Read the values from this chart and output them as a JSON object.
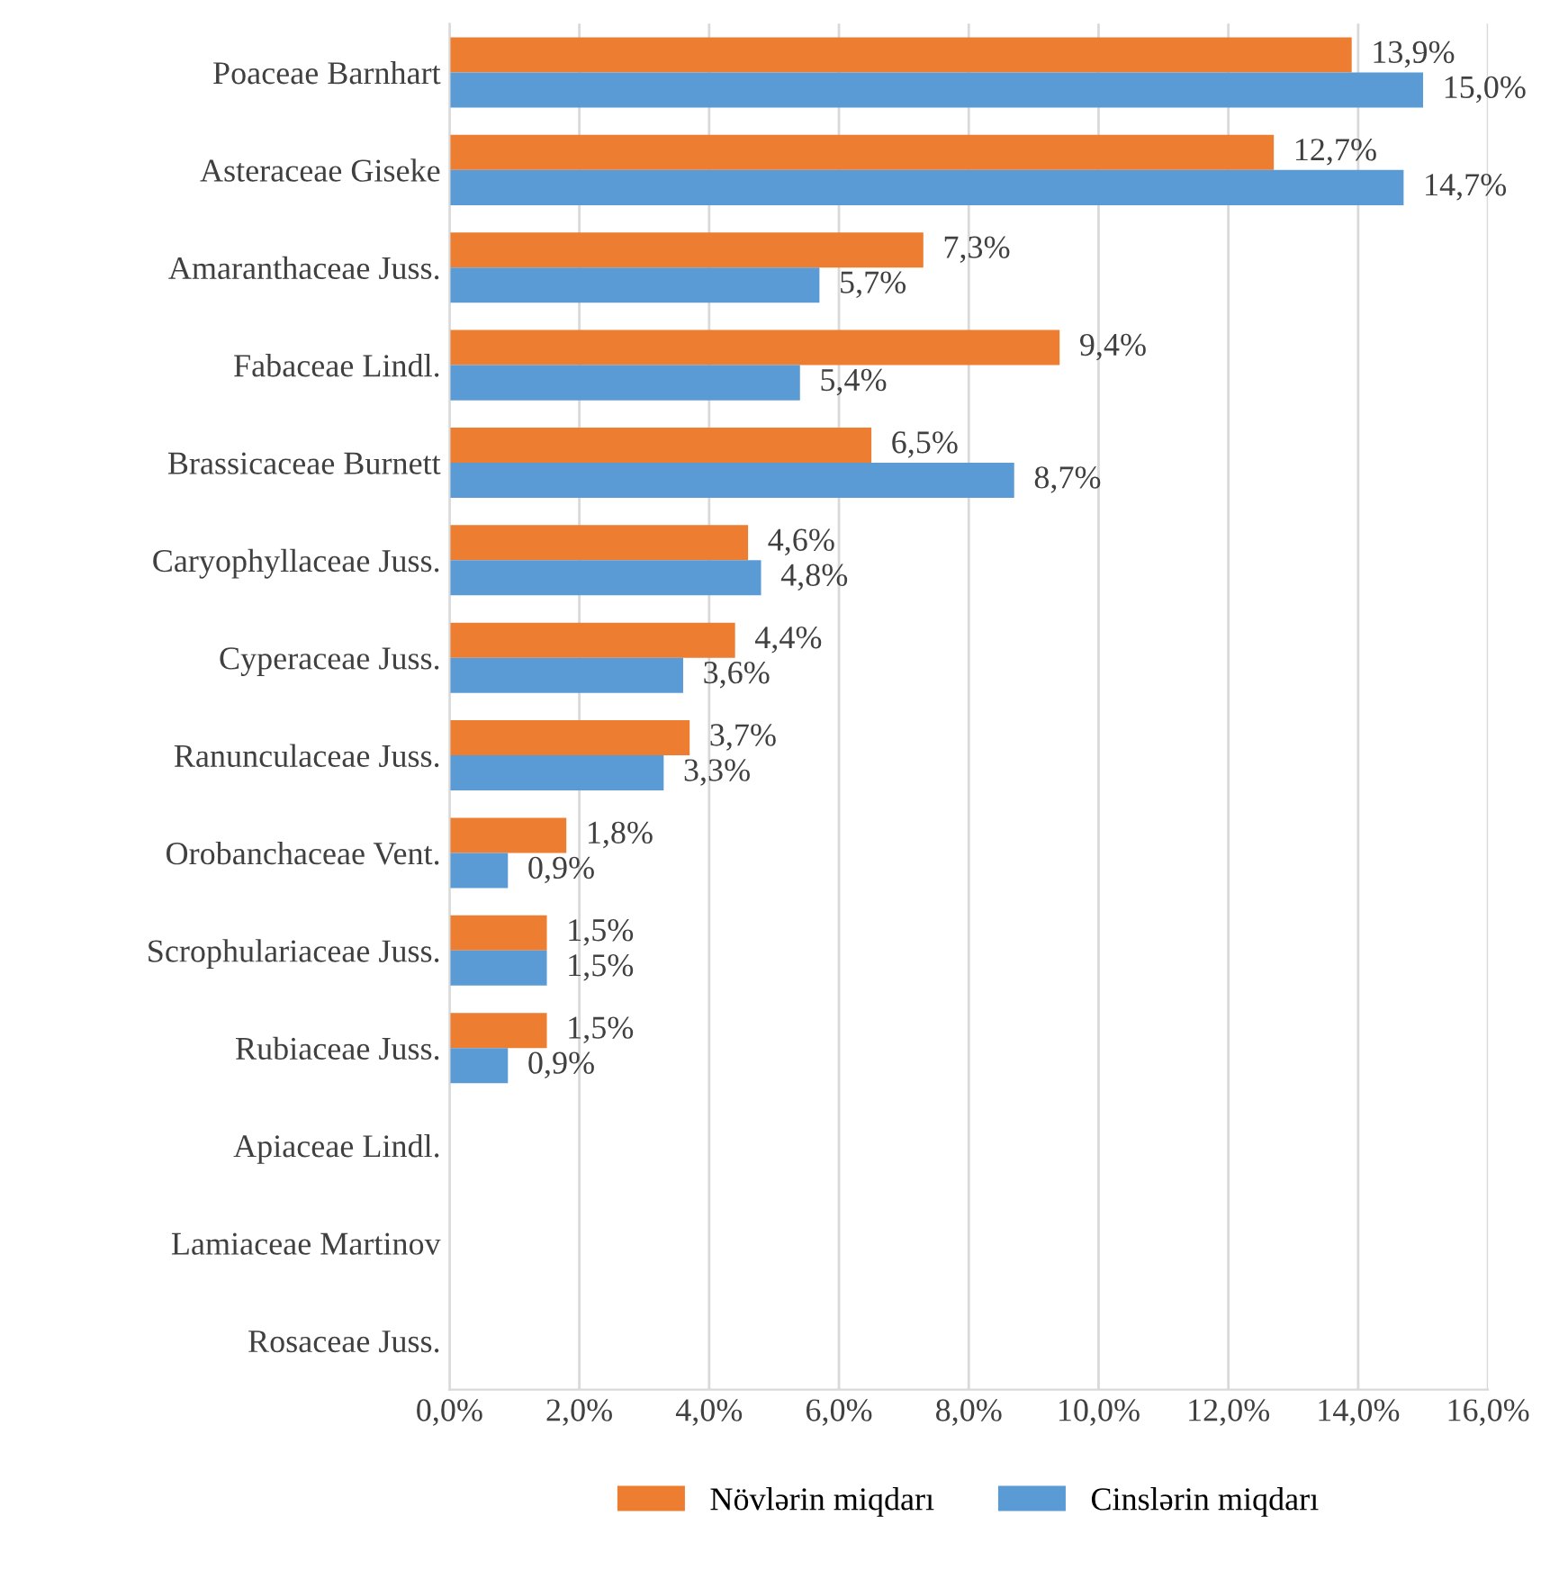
{
  "chart_data": {
    "type": "bar",
    "orientation": "horizontal",
    "categories": [
      "Poaceae Barnhart",
      "Asteraceae Giseke",
      "Amaranthaceae Juss.",
      "Fabaceae Lindl.",
      "Brassicaceae Burnett",
      "Caryophyllaceae Juss.",
      "Cyperaceae Juss.",
      "Ranunculaceae Juss.",
      "Orobanchaceae Vent.",
      "Scrophulariaceae Juss.",
      "Rubiaceae Juss.",
      "Apiaceae Lindl.",
      "Lamiaceae Martinov",
      "Rosaceae Juss."
    ],
    "series": [
      {
        "name": "Növlərin miqdarı",
        "color": "#ed7d31",
        "values": [
          13.9,
          12.7,
          7.3,
          9.4,
          6.5,
          4.6,
          4.4,
          3.7,
          1.8,
          1.5,
          1.5,
          null,
          null,
          null
        ],
        "value_labels": [
          "13,9%",
          "12,7%",
          "7,3%",
          "9,4%",
          "6,5%",
          "4,6%",
          "4,4%",
          "3,7%",
          "1,8%",
          "1,5%",
          "1,5%",
          null,
          null,
          null
        ]
      },
      {
        "name": "Cinslərin miqdarı",
        "color": "#5b9bd5",
        "values": [
          15.0,
          14.7,
          5.7,
          5.4,
          8.7,
          4.8,
          3.6,
          3.3,
          0.9,
          1.5,
          0.9,
          null,
          null,
          null
        ],
        "value_labels": [
          "15,0%",
          "14,7%",
          "5,7%",
          "5,4%",
          "8,7%",
          "4,8%",
          "3,6%",
          "3,3%",
          "0,9%",
          "1,5%",
          "0,9%",
          null,
          null,
          null
        ]
      }
    ],
    "xlim": [
      0,
      16
    ],
    "xticks": [
      {
        "value": 0,
        "label": "0,0%"
      },
      {
        "value": 2,
        "label": "2,0%"
      },
      {
        "value": 4,
        "label": "4,0%"
      },
      {
        "value": 6,
        "label": "6,0%"
      },
      {
        "value": 8,
        "label": "8,0%"
      },
      {
        "value": 10,
        "label": "10,0%"
      },
      {
        "value": 12,
        "label": "12,0%"
      },
      {
        "value": 14,
        "label": "14,0%"
      },
      {
        "value": 16,
        "label": "16,0%"
      }
    ],
    "grid": "x",
    "legend": "bottom"
  }
}
